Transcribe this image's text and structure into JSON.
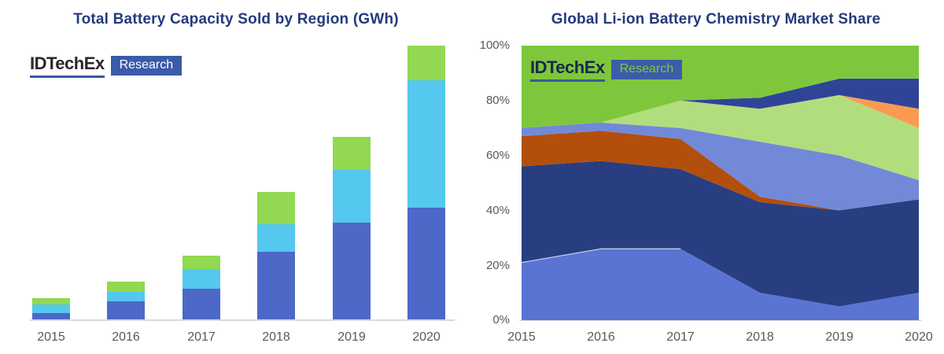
{
  "left_chart": {
    "title": "Total Battery Capacity Sold by Region (GWh)",
    "logo": {
      "brand": "IDTechEx",
      "suffix": "Research"
    },
    "x_labels": [
      "2015",
      "2016",
      "2017",
      "2018",
      "2019",
      "2020"
    ]
  },
  "right_chart": {
    "title": "Global Li-ion Battery Chemistry Market Share",
    "logo": {
      "brand": "IDTechEx",
      "suffix": "Research"
    },
    "y_labels": [
      "100%",
      "80%",
      "60%",
      "40%",
      "20%",
      "0%"
    ],
    "x_labels": [
      "2015",
      "2016",
      "2017",
      "2018",
      "2019",
      "2020"
    ]
  },
  "colors": {
    "title_text": "#233a7d",
    "axis_text": "#595959",
    "axis_line": "#d9d9d9",
    "logo_left_underline": "#3a57a7",
    "logo_left_box": "#3b5aa9",
    "logo_right_underline": "#2e5f93",
    "logo_right_box": "#3c5caa",
    "logo_right_box_text": "#7ec73c"
  },
  "chart_data": [
    {
      "type": "bar",
      "stacked": true,
      "title": "Total Battery Capacity Sold by Region (GWh)",
      "categories": [
        "2015",
        "2016",
        "2017",
        "2018",
        "2019",
        "2020"
      ],
      "series": [
        {
          "name": "region-blue-bottom",
          "color": "#4e68c8",
          "values": [
            8,
            23,
            39,
            86,
            123,
            142
          ]
        },
        {
          "name": "region-cyan-middle",
          "color": "#54c8ef",
          "values": [
            11,
            12,
            25,
            35,
            67,
            162
          ]
        },
        {
          "name": "region-green-top",
          "color": "#92d850",
          "values": [
            8,
            13,
            17,
            41,
            42,
            44
          ]
        }
      ],
      "xlabel": "",
      "ylabel": "GWh",
      "ylim": [
        0,
        350
      ],
      "y_axis_ticks_visible": false,
      "legend": "none",
      "note": "no y-axis scale shown; values are relative estimates from bar heights"
    },
    {
      "type": "area",
      "stacked": true,
      "title": "Global Li-ion Battery Chemistry Market Share",
      "x": [
        2015,
        2016,
        2017,
        2018,
        2019,
        2020
      ],
      "units": "percent market share",
      "series_order": "bottom to top",
      "series": [
        {
          "name": "chemistry-cornflower-blue",
          "color": "#5a74d4",
          "values": [
            21,
            26,
            26,
            10,
            5,
            10
          ]
        },
        {
          "name": "chemistry-dark-navy",
          "color": "#293e80",
          "values": [
            35,
            32,
            29,
            33,
            35,
            34
          ]
        },
        {
          "name": "chemistry-rust-red",
          "color": "#b24f0c",
          "values": [
            11,
            11,
            11,
            2,
            0,
            0
          ]
        },
        {
          "name": "chemistry-periwinkle",
          "color": "#7289d8",
          "values": [
            3,
            3,
            4,
            20,
            20,
            7
          ]
        },
        {
          "name": "chemistry-pale-green",
          "color": "#b2dd7d",
          "values": [
            0,
            0,
            10,
            12,
            22,
            19
          ]
        },
        {
          "name": "chemistry-orange",
          "color": "#fa9a50",
          "values": [
            0,
            0,
            0,
            0,
            0,
            7
          ]
        },
        {
          "name": "chemistry-navy-2",
          "color": "#2f4496",
          "values": [
            0,
            0,
            0,
            4,
            6,
            11
          ]
        },
        {
          "name": "chemistry-bright-green",
          "color": "#7ec73c",
          "values": [
            30,
            28,
            20,
            19,
            12,
            12
          ]
        }
      ],
      "xlabel": "",
      "ylabel": "",
      "ylim": [
        0,
        100
      ],
      "y_tick_labels": [
        "0%",
        "20%",
        "40%",
        "60%",
        "80%",
        "100%"
      ],
      "grid": false,
      "legend": "none"
    }
  ]
}
